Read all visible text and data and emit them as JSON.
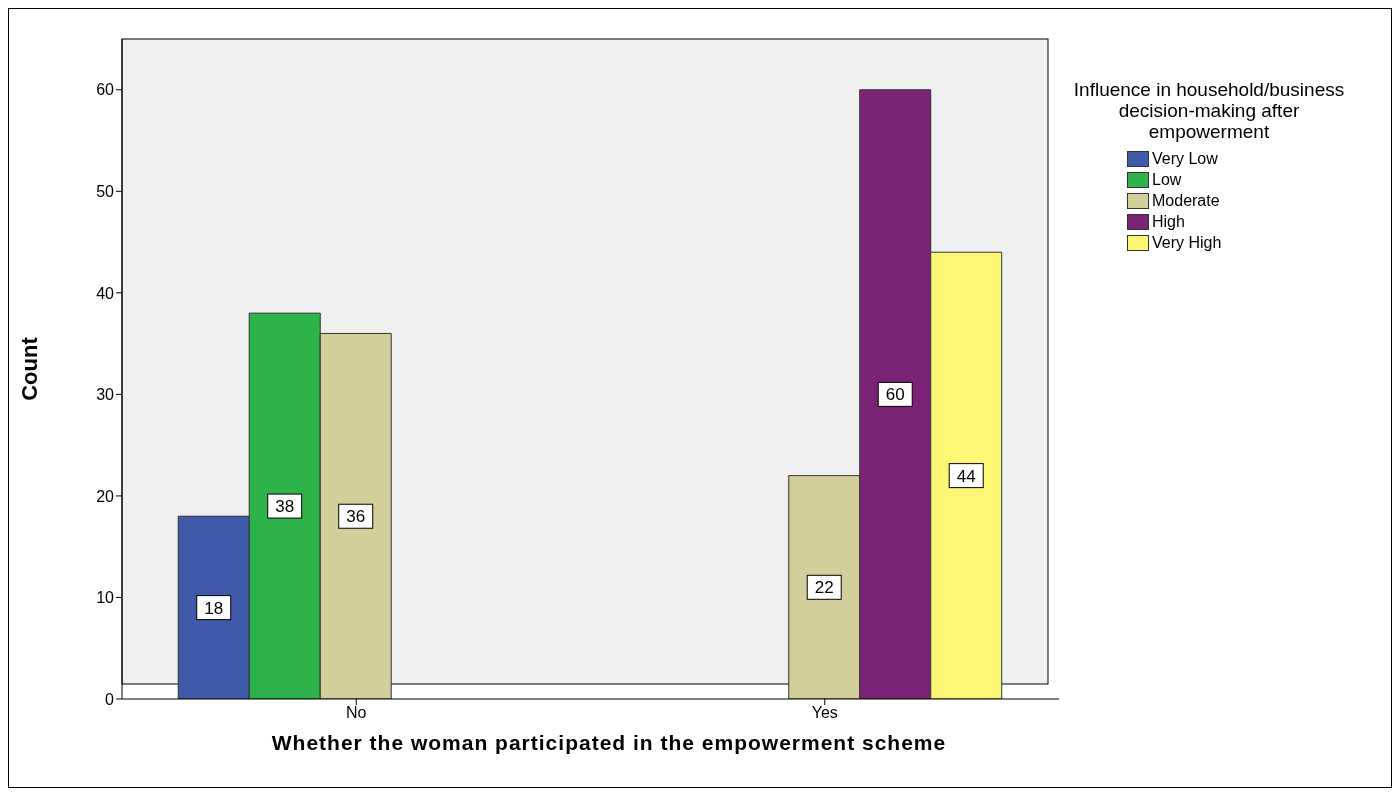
{
  "chart_data": {
    "type": "bar",
    "xlabel": "Whether the woman participated in the empowerment scheme",
    "ylabel": "Count",
    "legend_title": "Influence in household/business decision-making after empowerment",
    "categories": [
      "No",
      "Yes"
    ],
    "series": [
      {
        "name": "Very Low",
        "color": "#3f5aa8",
        "values": [
          18,
          null
        ]
      },
      {
        "name": "Low",
        "color": "#2db34a",
        "values": [
          38,
          null
        ]
      },
      {
        "name": "Moderate",
        "color": "#d4cf9a",
        "values": [
          36,
          22
        ]
      },
      {
        "name": "High",
        "color": "#7b2476",
        "values": [
          null,
          60
        ]
      },
      {
        "name": "Very High",
        "color": "#fbf674",
        "values": [
          null,
          44
        ]
      }
    ],
    "ylim": [
      0,
      65
    ],
    "yticks": [
      0,
      10,
      20,
      30,
      40,
      50,
      60
    ],
    "grid": false,
    "legend": "top right",
    "data_labels": true
  }
}
